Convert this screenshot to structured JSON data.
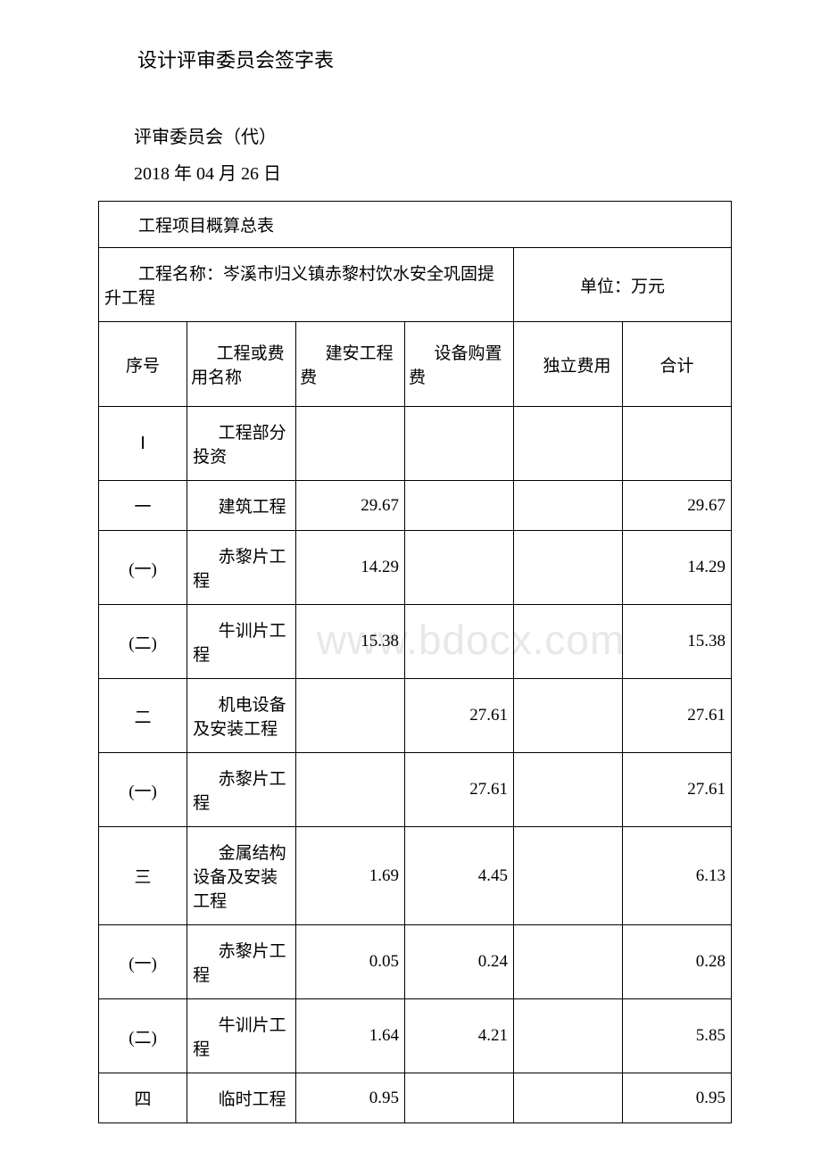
{
  "headings": {
    "title": "设计评审委员会签字表",
    "subtitle": "评审委员会（代）",
    "date": "2018 年 04 月 26 日"
  },
  "watermark": "www.bdocx.com",
  "table": {
    "title": "工程项目概算总表",
    "project_name": "工程名称：岑溪市归义镇赤黎村饮水安全巩固提升工程",
    "unit_label": "单位：万元",
    "headers": {
      "col1": "序号",
      "col2": "工程或费用名称",
      "col3": "建安工程费",
      "col4": "设备购置费",
      "col5": "独立费用",
      "col6": "合计"
    },
    "rows": [
      {
        "c1": "Ⅰ",
        "c2": "工程部分投资",
        "c3": "",
        "c4": "",
        "c5": "",
        "c6": ""
      },
      {
        "c1": "一",
        "c2": "建筑工程",
        "c3": "29.67",
        "c4": "",
        "c5": "",
        "c6": "29.67"
      },
      {
        "c1": "(一)",
        "c2": "赤黎片工程",
        "c3": "14.29",
        "c4": "",
        "c5": "",
        "c6": "14.29"
      },
      {
        "c1": "(二)",
        "c2": "牛训片工程",
        "c3": "15.38",
        "c4": "",
        "c5": "",
        "c6": "15.38"
      },
      {
        "c1": "二",
        "c2": "机电设备及安装工程",
        "c3": "",
        "c4": "27.61",
        "c5": "",
        "c6": "27.61"
      },
      {
        "c1": "(一)",
        "c2": "赤黎片工程",
        "c3": "",
        "c4": "27.61",
        "c5": "",
        "c6": "27.61"
      },
      {
        "c1": "三",
        "c2": "金属结构设备及安装工程",
        "c3": "1.69",
        "c4": "4.45",
        "c5": "",
        "c6": "6.13"
      },
      {
        "c1": "(一)",
        "c2": "赤黎片工程",
        "c3": "0.05",
        "c4": "0.24",
        "c5": "",
        "c6": "0.28"
      },
      {
        "c1": "(二)",
        "c2": "牛训片工程",
        "c3": "1.64",
        "c4": "4.21",
        "c5": "",
        "c6": "5.85"
      },
      {
        "c1": "四",
        "c2": "临时工程",
        "c3": "0.95",
        "c4": "",
        "c5": "",
        "c6": "0.95"
      }
    ],
    "col2_header_indent": "工程或费用名称",
    "col5_header_indent": "独立费用"
  },
  "styling": {
    "background_color": "#ffffff",
    "text_color": "#000000",
    "border_color": "#000000",
    "watermark_color": "#e8e8e8",
    "font_family": "SimSun",
    "title_fontsize": 22,
    "body_fontsize": 20,
    "table_fontsize": 19,
    "col_widths_pct": [
      13,
      16,
      16,
      16,
      16,
      16
    ]
  }
}
